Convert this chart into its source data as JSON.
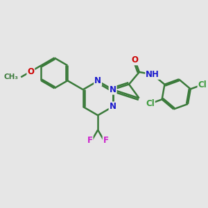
{
  "bg_color": "#e6e6e6",
  "bond_color": "#3a7a3a",
  "bond_width": 1.8,
  "atom_colors": {
    "N": "#1a1acc",
    "O": "#cc0000",
    "F": "#cc22cc",
    "Cl": "#3a9a3a",
    "C": "#3a7a3a"
  },
  "fs": 8.5
}
